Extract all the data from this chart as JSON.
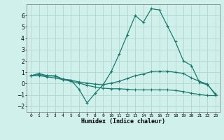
{
  "xlabel": "Humidex (Indice chaleur)",
  "x_values": [
    0,
    1,
    2,
    3,
    4,
    5,
    6,
    7,
    8,
    9,
    10,
    11,
    12,
    13,
    14,
    15,
    16,
    17,
    18,
    19,
    20,
    21,
    22,
    23
  ],
  "line1": [
    0.7,
    0.9,
    0.7,
    0.7,
    0.4,
    0.3,
    -0.5,
    -1.7,
    -0.85,
    -0.1,
    1.05,
    2.6,
    4.3,
    6.0,
    5.4,
    6.6,
    6.5,
    5.1,
    3.7,
    2.0,
    1.6,
    0.1,
    -0.1,
    -0.9
  ],
  "line2": [
    0.7,
    0.8,
    0.7,
    0.65,
    0.4,
    0.3,
    0.15,
    0.05,
    -0.05,
    -0.1,
    0.05,
    0.2,
    0.45,
    0.7,
    0.85,
    1.05,
    1.1,
    1.1,
    1.0,
    0.9,
    0.5,
    0.2,
    -0.05,
    -1.0
  ],
  "line3": [
    0.7,
    0.7,
    0.6,
    0.5,
    0.35,
    0.2,
    0.05,
    -0.15,
    -0.3,
    -0.4,
    -0.45,
    -0.45,
    -0.5,
    -0.55,
    -0.55,
    -0.55,
    -0.55,
    -0.55,
    -0.6,
    -0.7,
    -0.85,
    -0.95,
    -1.05,
    -1.05
  ],
  "bg_color": "#cff0eb",
  "line_color": "#1a7a6e",
  "grid_color": "#b8d8d4",
  "ylim": [
    -2.5,
    7.0
  ],
  "yticks": [
    -2,
    -1,
    0,
    1,
    2,
    3,
    4,
    5,
    6
  ],
  "xlim": [
    -0.5,
    23.5
  ]
}
